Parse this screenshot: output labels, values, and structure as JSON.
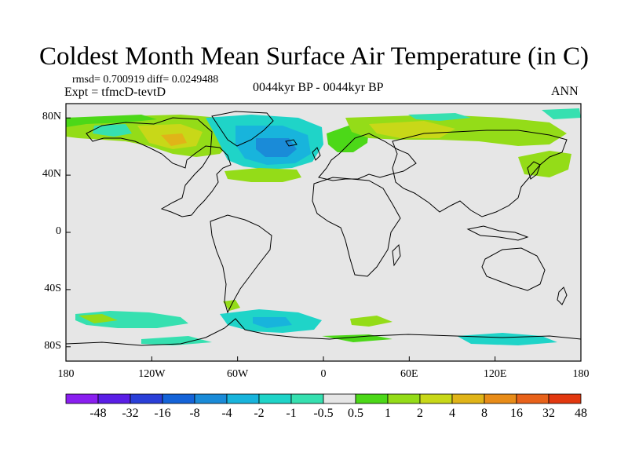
{
  "header": {
    "title": "Coldest Month Mean Surface Air Temperature (in C)",
    "stats": "rmsd= 0.700919 diff= 0.0249488",
    "experiment": "Expt = tfmcD-tevtD",
    "period": "0044kyr BP - 0044kyr BP",
    "season": "ANN"
  },
  "map": {
    "projection": "cylindrical equidistant",
    "lon_range": [
      -180,
      180
    ],
    "lat_range": [
      -90,
      90
    ],
    "y_ticks": [
      "80N",
      "40N",
      "0",
      "40S",
      "80S"
    ],
    "x_ticks": [
      "180",
      "120W",
      "60W",
      "0",
      "60E",
      "120E",
      "180"
    ],
    "background_color": "#e6e6e6"
  },
  "colorbar": {
    "labels": [
      "-48",
      "-32",
      "-16",
      "-8",
      "-4",
      "-2",
      "-1",
      "-0.5",
      "0.5",
      "1",
      "2",
      "4",
      "8",
      "16",
      "32",
      "48"
    ],
    "colors": [
      "#8a1ff0",
      "#5a1ee6",
      "#2a3fd8",
      "#1463d8",
      "#1a8bd8",
      "#18b4dc",
      "#1fd4c8",
      "#36e0b0",
      "#e6e6e6",
      "#4cd818",
      "#94dc18",
      "#c8d818",
      "#e0b418",
      "#e88c18",
      "#e8621a",
      "#e2380f"
    ]
  }
}
